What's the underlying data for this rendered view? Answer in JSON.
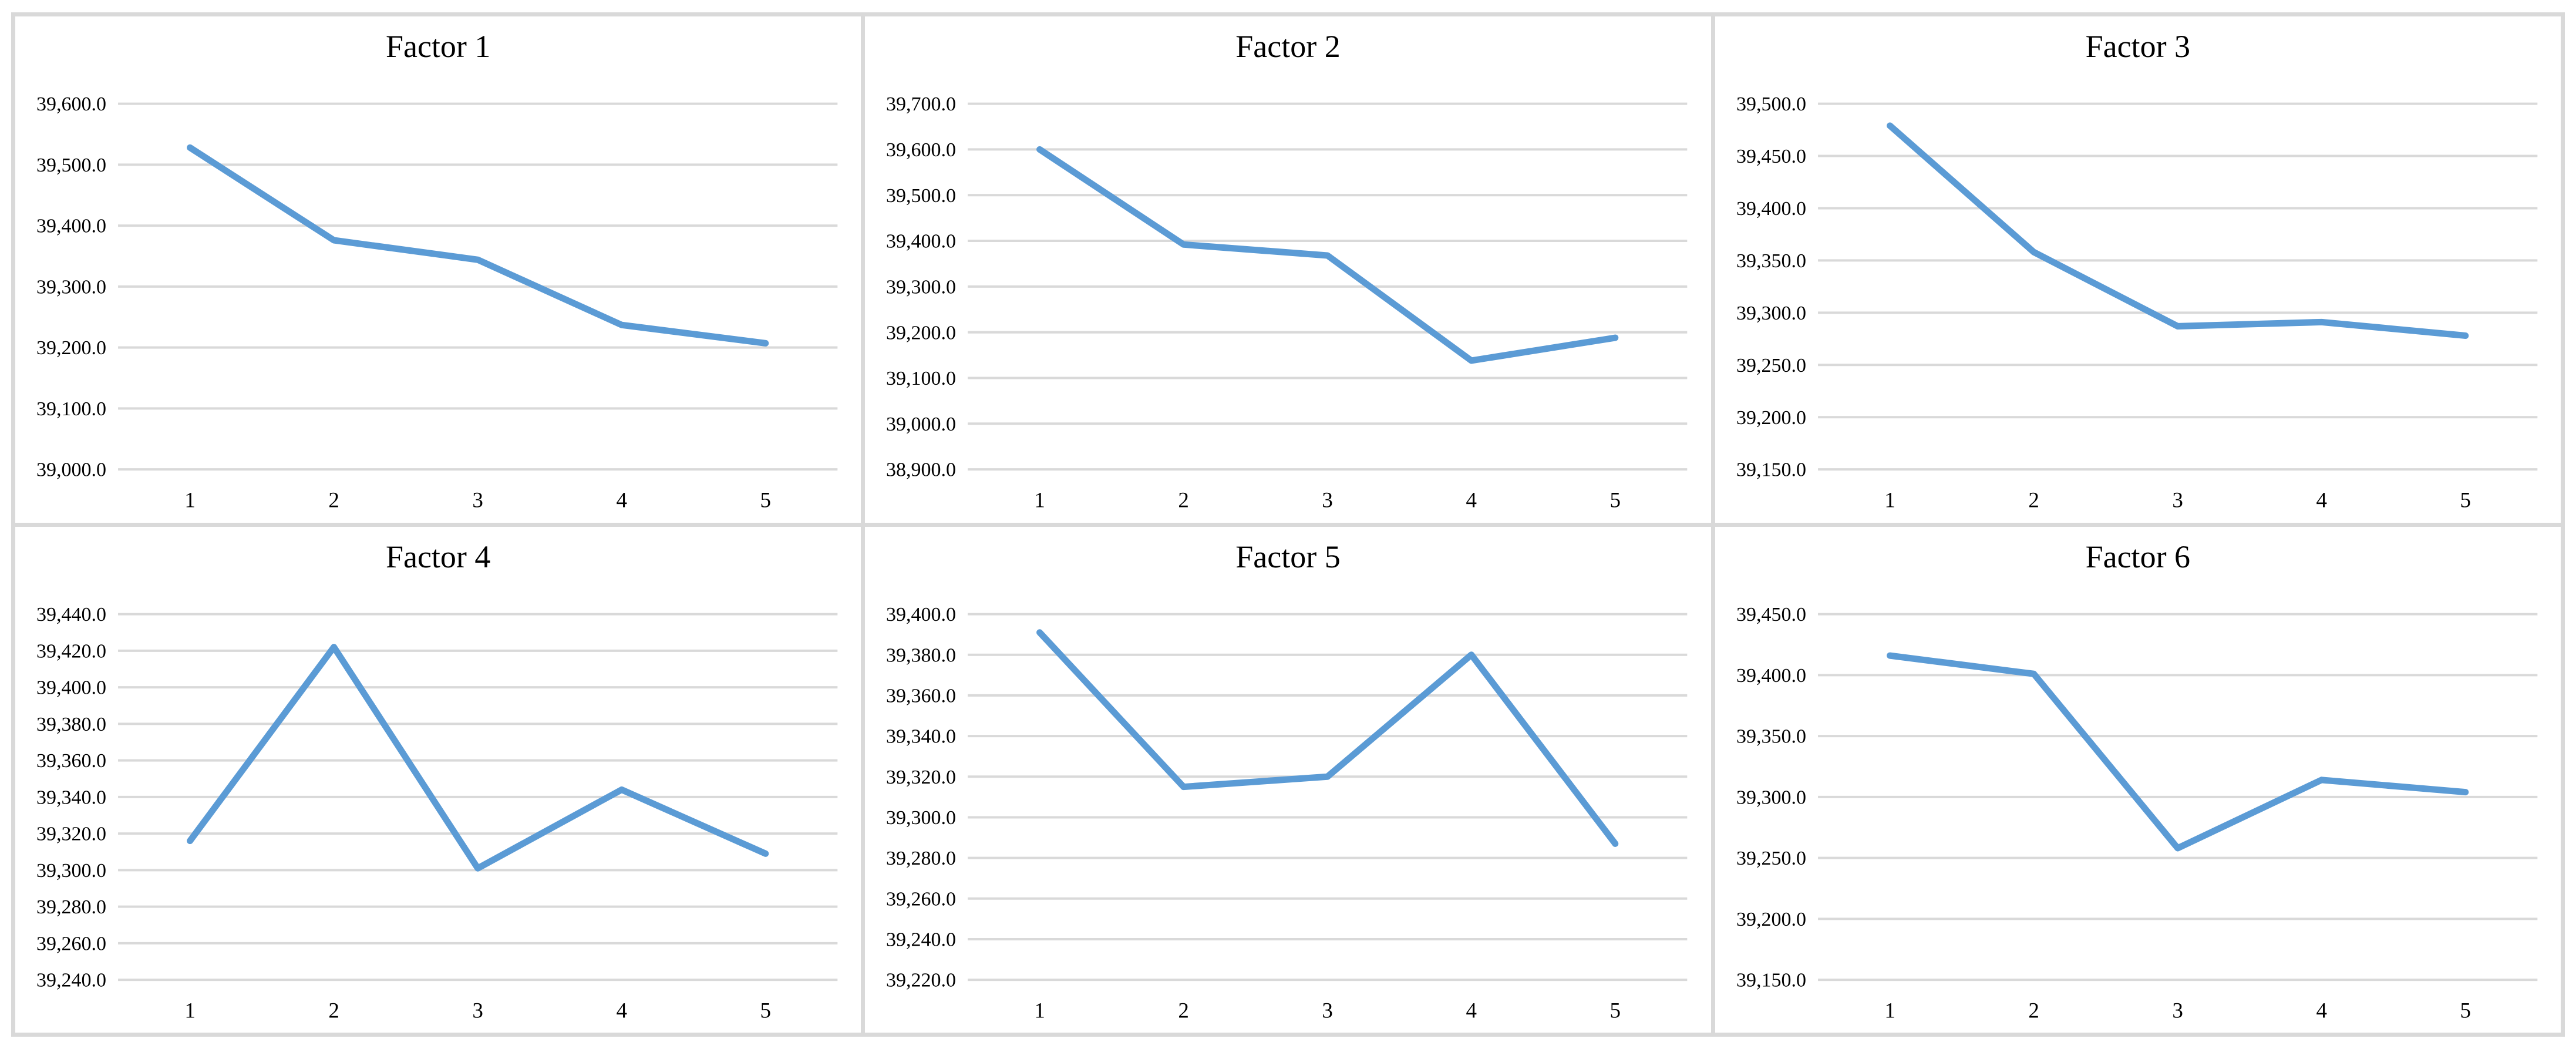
{
  "style": {
    "line_color": "#5B9BD5",
    "gridline_color": "#D9D9D9",
    "panel_border_color": "#D9D9D9",
    "background_color": "#FFFFFF",
    "text_color": "#000000"
  },
  "chart_data": [
    {
      "type": "line",
      "title": "Factor 1",
      "categories": [
        "1",
        "2",
        "3",
        "4",
        "5"
      ],
      "values": [
        39528,
        39376,
        39344,
        39237,
        39207
      ],
      "xlabel": "",
      "ylabel": "",
      "ylim": [
        39000,
        39600
      ],
      "ystep": 100,
      "y_tick_labels": [
        "39,600.0",
        "39,500.0",
        "39,400.0",
        "39,300.0",
        "39,200.0",
        "39,100.0",
        "39,000.0"
      ],
      "grid": true,
      "legend": "none"
    },
    {
      "type": "line",
      "title": "Factor 2",
      "categories": [
        "1",
        "2",
        "3",
        "4",
        "5"
      ],
      "values": [
        39600,
        39392,
        39368,
        39138,
        39188
      ],
      "xlabel": "",
      "ylabel": "",
      "ylim": [
        38900,
        39700
      ],
      "ystep": 100,
      "y_tick_labels": [
        "39,700.0",
        "39,600.0",
        "39,500.0",
        "39,400.0",
        "39,300.0",
        "39,200.0",
        "39,100.0",
        "39,000.0",
        "38,900.0"
      ],
      "grid": true,
      "legend": "none"
    },
    {
      "type": "line",
      "title": "Factor 3",
      "categories": [
        "1",
        "2",
        "3",
        "4",
        "5"
      ],
      "values": [
        39479,
        39358,
        39287,
        39291,
        39278
      ],
      "xlabel": "",
      "ylabel": "",
      "ylim": [
        39150,
        39500
      ],
      "ystep": 50,
      "y_tick_labels": [
        "39,500.0",
        "39,450.0",
        "39,400.0",
        "39,350.0",
        "39,300.0",
        "39,250.0",
        "39,200.0",
        "39,150.0"
      ],
      "grid": true,
      "legend": "none"
    },
    {
      "type": "line",
      "title": "Factor 4",
      "categories": [
        "1",
        "2",
        "3",
        "4",
        "5"
      ],
      "values": [
        39316,
        39422,
        39301,
        39344,
        39309
      ],
      "xlabel": "",
      "ylabel": "",
      "ylim": [
        39240,
        39440
      ],
      "ystep": 20,
      "y_tick_labels": [
        "39,440.0",
        "39,420.0",
        "39,400.0",
        "39,380.0",
        "39,360.0",
        "39,340.0",
        "39,320.0",
        "39,300.0",
        "39,280.0",
        "39,260.0",
        "39,240.0"
      ],
      "grid": true,
      "legend": "none"
    },
    {
      "type": "line",
      "title": "Factor 5",
      "categories": [
        "1",
        "2",
        "3",
        "4",
        "5"
      ],
      "values": [
        39391,
        39315,
        39320,
        39380,
        39287
      ],
      "xlabel": "",
      "ylabel": "",
      "ylim": [
        39220,
        39400
      ],
      "ystep": 20,
      "y_tick_labels": [
        "39,400.0",
        "39,380.0",
        "39,360.0",
        "39,340.0",
        "39,320.0",
        "39,300.0",
        "39,280.0",
        "39,260.0",
        "39,240.0",
        "39,220.0"
      ],
      "grid": true,
      "legend": "none"
    },
    {
      "type": "line",
      "title": "Factor 6",
      "categories": [
        "1",
        "2",
        "3",
        "4",
        "5"
      ],
      "values": [
        39416,
        39401,
        39258,
        39314,
        39304
      ],
      "xlabel": "",
      "ylabel": "",
      "ylim": [
        39150,
        39450
      ],
      "ystep": 50,
      "y_tick_labels": [
        "39,450.0",
        "39,400.0",
        "39,350.0",
        "39,300.0",
        "39,250.0",
        "39,200.0",
        "39,150.0"
      ],
      "grid": true,
      "legend": "none"
    }
  ]
}
